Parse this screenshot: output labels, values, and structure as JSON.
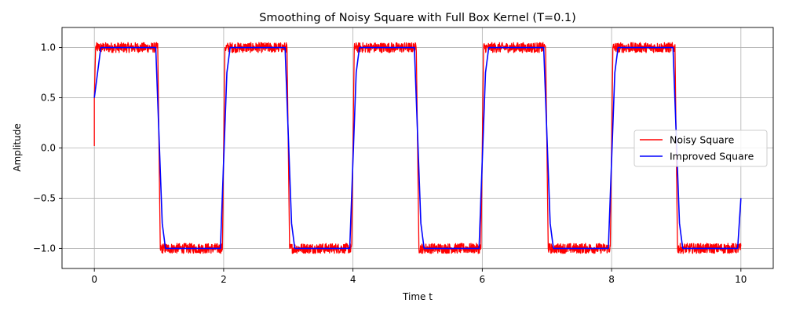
{
  "chart_data": {
    "type": "line",
    "title": "Smoothing of Noisy Square with Full Box Kernel (T=0.1)",
    "xlabel": "Time t",
    "ylabel": "Amplitude",
    "xlim": [
      -0.5,
      10.5
    ],
    "ylim": [
      -1.2,
      1.2
    ],
    "xticks": [
      0,
      2,
      4,
      6,
      8,
      10
    ],
    "yticks": [
      -1.0,
      -0.5,
      0.0,
      0.5,
      1.0
    ],
    "xtick_labels": [
      "0",
      "2",
      "4",
      "6",
      "8",
      "10"
    ],
    "ytick_labels": [
      "−1.0",
      "−0.5",
      "0.0",
      "0.5",
      "1.0"
    ],
    "grid": true,
    "legend_position": "center-right",
    "series": [
      {
        "name": "Noisy Square",
        "color": "#ff0000",
        "noise_band": 0.05,
        "x": [
          0,
          0,
          0.02,
          0.98,
          1,
          1.02,
          1.98,
          2,
          2.02,
          2.98,
          3,
          3.02,
          3.98,
          4,
          4.02,
          4.98,
          5,
          5.02,
          5.98,
          6,
          6.02,
          6.98,
          7,
          7.02,
          7.98,
          8,
          8.02,
          8.98,
          9,
          9.02,
          10
        ],
        "y": [
          0.02,
          0.5,
          1.0,
          1.0,
          0.0,
          -1.0,
          -1.0,
          0.0,
          1.0,
          1.0,
          0.0,
          -1.0,
          -1.0,
          0.0,
          1.0,
          1.0,
          0.0,
          -1.0,
          -1.0,
          0.0,
          1.0,
          1.0,
          0.0,
          -1.0,
          -1.0,
          0.0,
          1.0,
          1.0,
          0.0,
          -1.0,
          -1.0
        ]
      },
      {
        "name": "Improved Square",
        "color": "#0000ff",
        "x": [
          0,
          0.05,
          0.1,
          0.95,
          1.05,
          1.1,
          1.95,
          2.05,
          2.1,
          2.95,
          3.05,
          3.1,
          3.95,
          4.05,
          4.1,
          4.95,
          5.05,
          5.1,
          5.95,
          6.05,
          6.1,
          6.95,
          7.05,
          7.1,
          7.95,
          8.05,
          8.1,
          8.95,
          9.05,
          9.1,
          9.95,
          10
        ],
        "y": [
          0.5,
          0.75,
          1.0,
          1.0,
          -0.75,
          -1.0,
          -1.0,
          0.75,
          1.0,
          1.0,
          -0.75,
          -1.0,
          -1.0,
          0.75,
          1.0,
          1.0,
          -0.75,
          -1.0,
          -1.0,
          0.75,
          1.0,
          1.0,
          -0.75,
          -1.0,
          -1.0,
          0.75,
          1.0,
          1.0,
          -0.75,
          -1.0,
          -1.0,
          -0.5
        ]
      }
    ]
  }
}
